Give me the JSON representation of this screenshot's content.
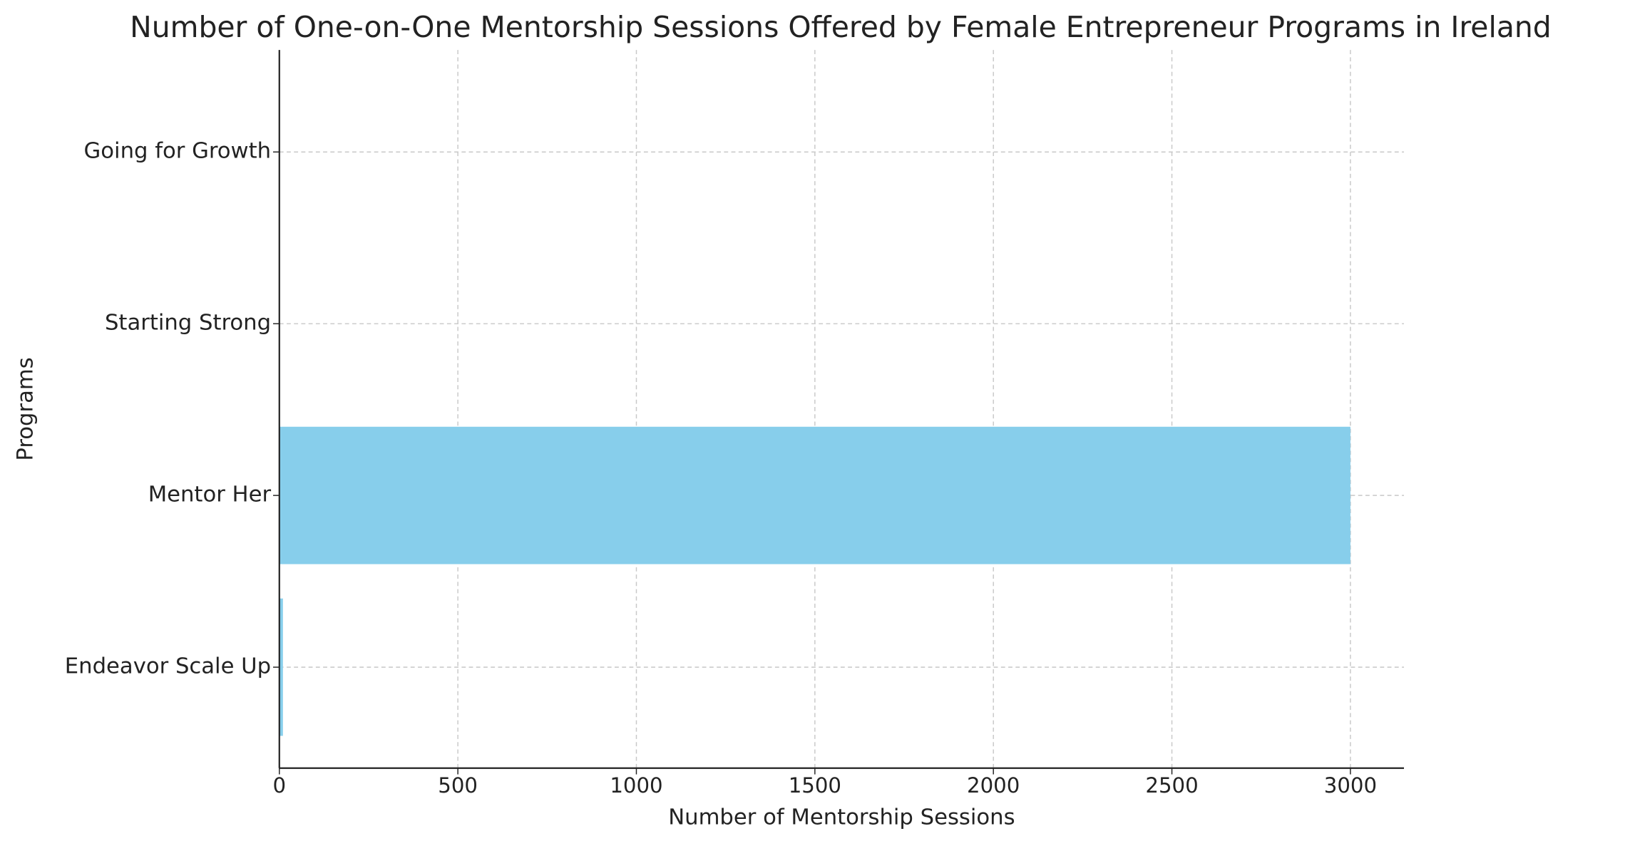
{
  "chart_data": {
    "type": "barh",
    "title": "Number of One-on-One Mentorship Sessions Offered by Female Entrepreneur Programs in Ireland",
    "xlabel": "Number of Mentorship Sessions",
    "ylabel": "Programs",
    "categories": [
      "Endeavor Scale Up",
      "Mentor Her",
      "Starting Strong",
      "Going for Growth"
    ],
    "values": [
      10,
      3000,
      0,
      0
    ],
    "color": "#87ceeb",
    "xlim": [
      0,
      3150
    ],
    "xticks": [
      0,
      500,
      1000,
      1500,
      2000,
      2500,
      3000
    ],
    "grid": true
  }
}
